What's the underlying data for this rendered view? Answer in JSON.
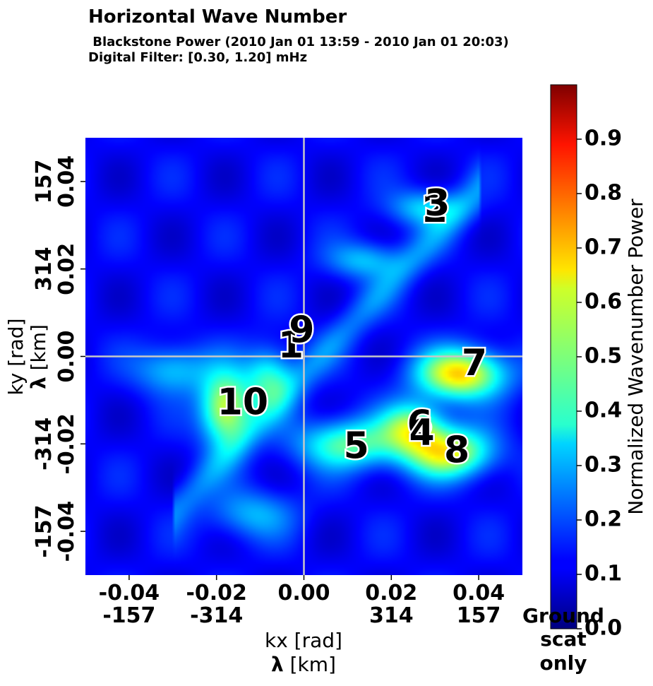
{
  "chart_data": {
    "type": "heatmap",
    "title": "Horizontal Wave Number",
    "subtitle_line1": " Blackstone Power (2010 Jan 01 13:59 - 2010 Jan 01 20:03)",
    "subtitle_line2": "Digital Filter: [0.30, 1.20] mHz",
    "xlabel_line1": "kx [rad]",
    "xlabel_line2_bold": "λ",
    "xlabel_line2_rest": " [km]",
    "ylabel_line1": "ky [rad]",
    "ylabel_line2_bold": "λ",
    "ylabel_line2_rest": " [km]",
    "xlim": [
      -0.05,
      0.05
    ],
    "ylim": [
      -0.05,
      0.05
    ],
    "xticks": [
      {
        "value": -0.04,
        "label": "-0.04",
        "lambda": "-157"
      },
      {
        "value": -0.02,
        "label": "-0.02",
        "lambda": "-314"
      },
      {
        "value": 0.0,
        "label": "0.00",
        "lambda": ""
      },
      {
        "value": 0.02,
        "label": "0.02",
        "lambda": "314"
      },
      {
        "value": 0.04,
        "label": "0.04",
        "lambda": "157"
      }
    ],
    "yticks": [
      {
        "value": 0.04,
        "label": "0.04",
        "lambda": "157"
      },
      {
        "value": 0.02,
        "label": "0.02",
        "lambda": "314"
      },
      {
        "value": 0.0,
        "label": "0.00",
        "lambda": ""
      },
      {
        "value": -0.02,
        "label": "-0.02",
        "lambda": "-314"
      },
      {
        "value": -0.04,
        "label": "-0.04",
        "lambda": "-157"
      }
    ],
    "crosshair": {
      "x": 0.0,
      "y": 0.0,
      "color": "#c8c8c8"
    },
    "colorbar": {
      "label": "Normalized Wavenumber Power",
      "colormap": "jet",
      "range": [
        0.0,
        1.0
      ],
      "ticks": [
        "0.0",
        "0.1",
        "0.2",
        "0.3",
        "0.4",
        "0.5",
        "0.6",
        "0.7",
        "0.8",
        "0.9"
      ],
      "tick_values": [
        0.0,
        0.1,
        0.2,
        0.3,
        0.4,
        0.5,
        0.6,
        0.7,
        0.8,
        0.9
      ],
      "extra_label_lines": [
        "Ground",
        "scat",
        "only"
      ]
    },
    "background_level": 0.12,
    "peaks": [
      {
        "kx": 0.036,
        "ky": -0.004,
        "amp": 0.55,
        "sx": 0.007,
        "sy": 0.004
      },
      {
        "kx": 0.033,
        "ky": -0.022,
        "amp": 0.48,
        "sx": 0.007,
        "sy": 0.004
      },
      {
        "kx": 0.025,
        "ky": -0.016,
        "amp": 0.38,
        "sx": 0.005,
        "sy": 0.004
      },
      {
        "kx": 0.01,
        "ky": -0.02,
        "amp": 0.35,
        "sx": 0.008,
        "sy": 0.004
      },
      {
        "kx": -0.018,
        "ky": -0.012,
        "amp": 0.48,
        "sx": 0.004,
        "sy": 0.006
      },
      {
        "kx": -0.008,
        "ky": -0.005,
        "amp": 0.3,
        "sx": 0.004,
        "sy": 0.005
      },
      {
        "kx": 0.014,
        "ky": 0.022,
        "amp": 0.2,
        "sx": 0.006,
        "sy": 0.003
      },
      {
        "kx": 0.028,
        "ky": 0.034,
        "amp": 0.22,
        "sx": 0.006,
        "sy": 0.003
      },
      {
        "kx": -0.03,
        "ky": -0.003,
        "amp": 0.22,
        "sx": 0.006,
        "sy": 0.004
      },
      {
        "kx": -0.012,
        "ky": -0.036,
        "amp": 0.18,
        "sx": 0.007,
        "sy": 0.004
      }
    ],
    "markers": [
      {
        "label": "1",
        "kx": -0.003,
        "ky": 0.002
      },
      {
        "label": "9",
        "kx": -0.0005,
        "ky": 0.0055
      },
      {
        "label": "2",
        "kx": 0.03,
        "ky": 0.033
      },
      {
        "label": "3",
        "kx": 0.0305,
        "ky": 0.0345
      },
      {
        "label": "7",
        "kx": 0.039,
        "ky": -0.002
      },
      {
        "label": "10",
        "kx": -0.014,
        "ky": -0.011
      },
      {
        "label": "5",
        "kx": 0.012,
        "ky": -0.021
      },
      {
        "label": "6",
        "kx": 0.0265,
        "ky": -0.016
      },
      {
        "label": "4",
        "kx": 0.027,
        "ky": -0.018
      },
      {
        "label": "8",
        "kx": 0.035,
        "ky": -0.022
      }
    ]
  }
}
